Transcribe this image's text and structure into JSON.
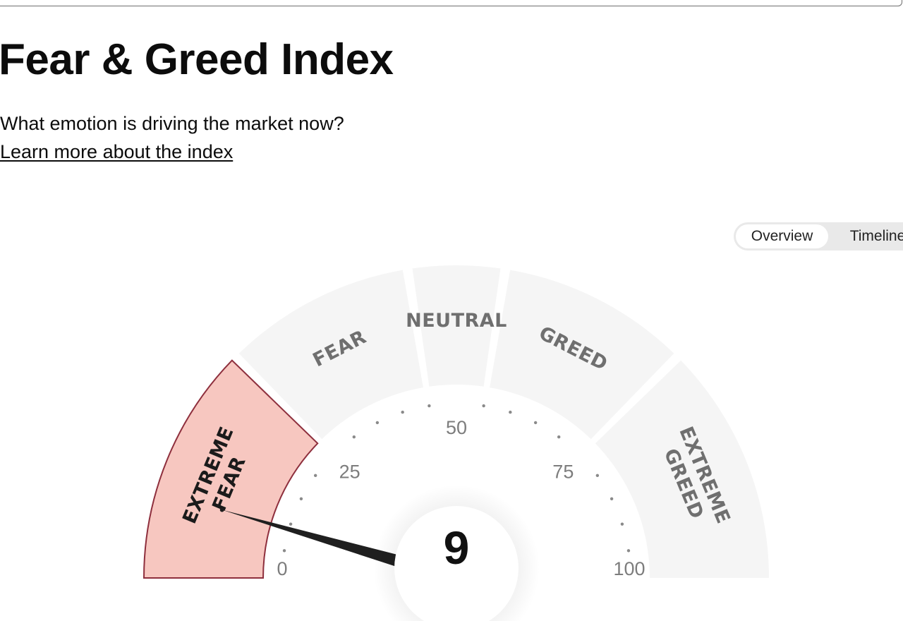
{
  "header": {
    "title": "Fear & Greed Index",
    "subtitle": "What emotion is driving the market now?",
    "learn_link": "Learn more about the index"
  },
  "view_toggle": {
    "options": [
      "Overview",
      "Timeline"
    ],
    "selected": "Overview"
  },
  "gauge": {
    "value": 9,
    "min": 0,
    "max": 100,
    "scale_labels": [
      "0",
      "25",
      "50",
      "75",
      "100"
    ],
    "active_segment": "Extreme Fear",
    "colors": {
      "active_fill": "#f7c7c0",
      "active_stroke": "#8e2f3d",
      "inactive_fill": "#f5f5f5",
      "needle": "#1f1f1f"
    },
    "segments": [
      {
        "name": "Extreme Fear",
        "range": [
          0,
          25
        ],
        "label_lines": [
          "EXTREME",
          "FEAR"
        ]
      },
      {
        "name": "Fear",
        "range": [
          25,
          45
        ],
        "label_lines": [
          "FEAR"
        ]
      },
      {
        "name": "Neutral",
        "range": [
          45,
          55
        ],
        "label_lines": [
          "NEUTRAL"
        ]
      },
      {
        "name": "Greed",
        "range": [
          55,
          75
        ],
        "label_lines": [
          "GREED"
        ]
      },
      {
        "name": "Extreme Greed",
        "range": [
          75,
          100
        ],
        "label_lines": [
          "EXTREME",
          "GREED"
        ]
      }
    ]
  }
}
